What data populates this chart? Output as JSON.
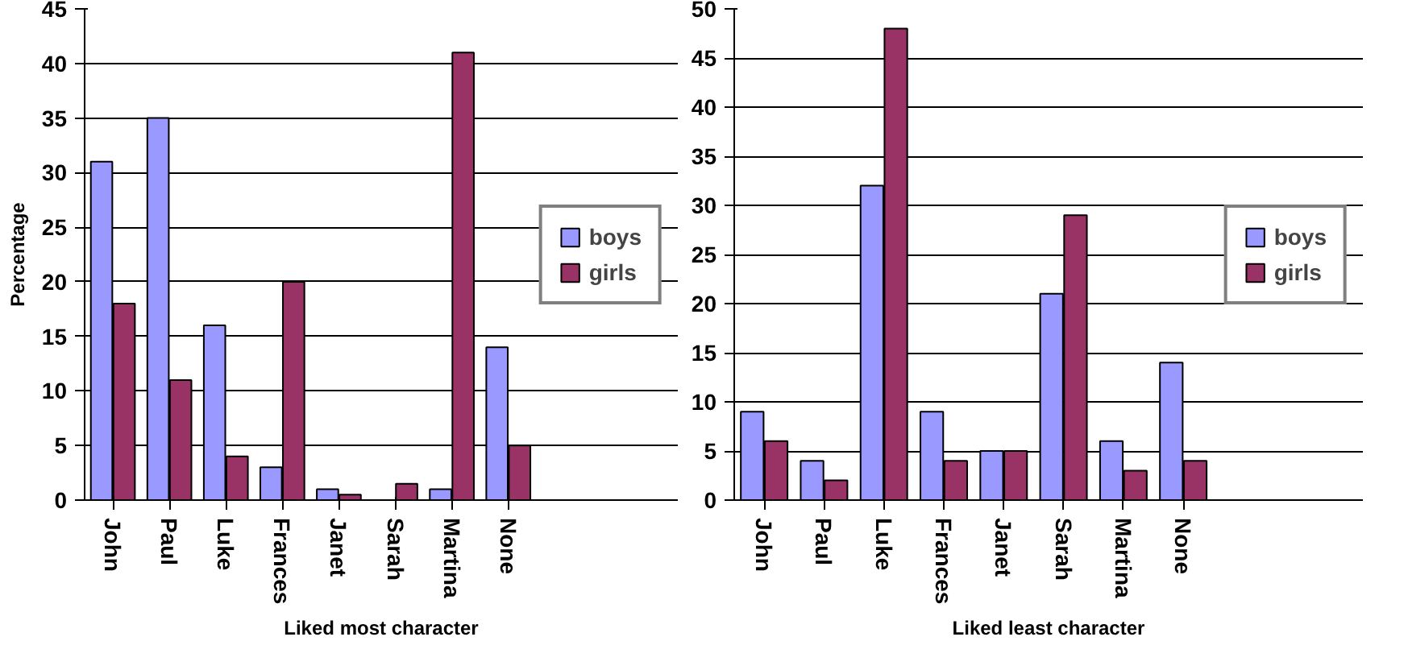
{
  "chart_data": [
    {
      "type": "bar",
      "xlabel": "Liked most character",
      "ylabel": "Percentage",
      "categories": [
        "John",
        "Paul",
        "Luke",
        "Frances",
        "Janet",
        "Sarah",
        "Martina",
        "None"
      ],
      "ylim": [
        0,
        45
      ],
      "yticks": [
        0,
        5,
        10,
        15,
        20,
        25,
        30,
        35,
        40,
        45
      ],
      "grid": "y",
      "legend": "right",
      "series": [
        {
          "name": "boys",
          "color": "#9999ff",
          "values": [
            31,
            35,
            16,
            3,
            1,
            null,
            1,
            14
          ]
        },
        {
          "name": "girls",
          "color": "#993366",
          "values": [
            18,
            11,
            4,
            20,
            0.5,
            1.5,
            41,
            5
          ]
        }
      ]
    },
    {
      "type": "bar",
      "xlabel": "Liked least character",
      "categories": [
        "John",
        "Paul",
        "Luke",
        "Frances",
        "Janet",
        "Sarah",
        "Martina",
        "None"
      ],
      "ylim": [
        0,
        50
      ],
      "yticks": [
        0,
        5,
        10,
        15,
        20,
        25,
        30,
        35,
        40,
        45,
        50
      ],
      "grid": "y",
      "legend": "right",
      "series": [
        {
          "name": "boys",
          "color": "#9999ff",
          "values": [
            9,
            4,
            32,
            9,
            5,
            21,
            6,
            14
          ]
        },
        {
          "name": "girls",
          "color": "#993366",
          "values": [
            6,
            2,
            48,
            4,
            5,
            29,
            3,
            4
          ]
        }
      ]
    }
  ]
}
